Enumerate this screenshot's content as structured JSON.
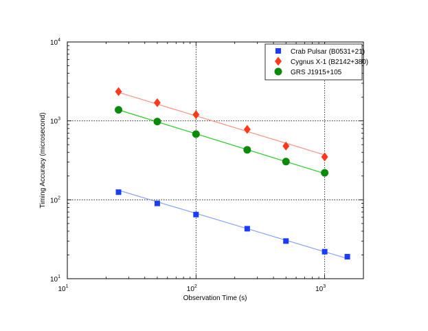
{
  "chart_data": {
    "type": "scatter",
    "xscale": "log",
    "yscale": "log",
    "xlim": [
      10,
      2000
    ],
    "ylim": [
      10,
      10000
    ],
    "xlabel": "Observation Time (s)",
    "ylabel": "Timing Accuracy (microsecond)",
    "x_ticks": [
      {
        "base": "10",
        "exp": "1"
      },
      {
        "base": "10",
        "exp": "2"
      },
      {
        "base": "10",
        "exp": "3"
      }
    ],
    "y_ticks": [
      {
        "base": "10",
        "exp": "1"
      },
      {
        "base": "10",
        "exp": "2"
      },
      {
        "base": "10",
        "exp": "3"
      },
      {
        "base": "10",
        "exp": "4"
      }
    ],
    "grid": "major, dotted (x=100, 1000; y=100, 1000)",
    "legend_position": "top-right",
    "series": [
      {
        "name": "Crab Pulsar (B0531+21)",
        "marker": "square",
        "color": "#1a3cff",
        "fit_color": "#8aa0ff",
        "x": [
          25,
          50,
          100,
          250,
          500,
          1000,
          1500
        ],
        "y": [
          125,
          90,
          65,
          43,
          30,
          22,
          19
        ],
        "fit": {
          "x": [
            25,
            1500
          ],
          "y": [
            132,
            18
          ]
        }
      },
      {
        "name": "Cygnus X-1 (B2142+380)",
        "marker": "diamond",
        "color": "#ff3a1a",
        "fit_color": "#ff9080",
        "x": [
          25,
          50,
          100,
          250,
          500,
          1000
        ],
        "y": [
          2350,
          1700,
          1200,
          780,
          480,
          350
        ],
        "fit": {
          "x": [
            25,
            1000
          ],
          "y": [
            2300,
            370
          ]
        }
      },
      {
        "name": "GRS J1915+105",
        "marker": "circle",
        "color": "#0a8a0a",
        "fit_color": "#22cc22",
        "x": [
          25,
          50,
          100,
          250,
          500,
          1000
        ],
        "y": [
          1380,
          980,
          680,
          430,
          305,
          220
        ],
        "fit": {
          "x": [
            25,
            1000
          ],
          "y": [
            1380,
            215
          ]
        }
      }
    ]
  }
}
